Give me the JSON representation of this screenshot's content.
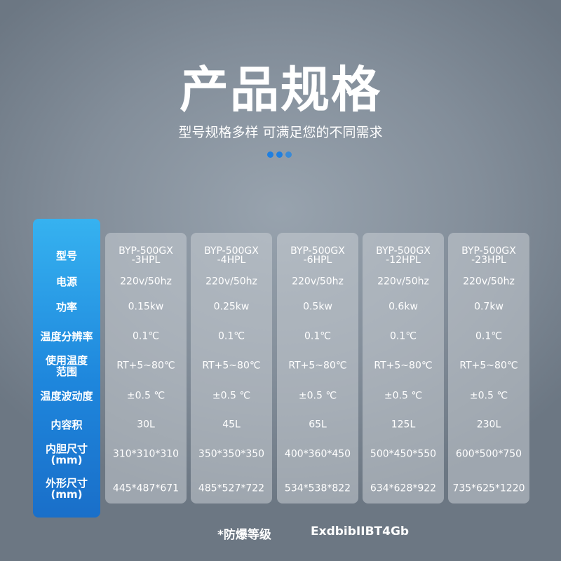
{
  "title": "产品规格",
  "subtitle": "型号规格多样 可满足您的不同需求",
  "dot_colors": [
    "#1f7fe0",
    "#1f7fe0",
    "#3a8ad6"
  ],
  "row_labels": [
    "型号",
    "电源",
    "功率",
    "温度分辨率",
    "使用温度\n范围",
    "温度波动度",
    "内容积",
    "内胆尺寸\n(mm)",
    "外形尺寸\n(mm)"
  ],
  "models": [
    {
      "values": [
        "BYP-500GX\n-3HPL",
        "220v/50hz",
        "0.15kw",
        "0.1℃",
        "RT+5~80℃",
        "±0.5 ℃",
        "30L",
        "310*310*310",
        "445*487*671"
      ]
    },
    {
      "values": [
        "BYP-500GX\n-4HPL",
        "220v/50hz",
        "0.25kw",
        "0.1℃",
        "RT+5~80℃",
        "±0.5 ℃",
        "45L",
        "350*350*350",
        "485*527*722"
      ]
    },
    {
      "values": [
        "BYP-500GX\n-6HPL",
        "220v/50hz",
        "0.5kw",
        "0.1℃",
        "RT+5~80℃",
        "±0.5 ℃",
        "65L",
        "400*360*450",
        "534*538*822"
      ]
    },
    {
      "values": [
        "BYP-500GX\n-12HPL",
        "220v/50hz",
        "0.6kw",
        "0.1℃",
        "RT+5~80℃",
        "±0.5 ℃",
        "125L",
        "500*450*550",
        "634*628*922"
      ]
    },
    {
      "values": [
        "BYP-500GX\n-23HPL",
        "220v/50hz",
        "0.7kw",
        "0.1℃",
        "RT+5~80℃",
        "±0.5 ℃",
        "230L",
        "600*500*750",
        "735*625*1220"
      ]
    }
  ],
  "footer": {
    "label": "*防爆等级",
    "value": "ExdbibIIBT4Gb"
  }
}
